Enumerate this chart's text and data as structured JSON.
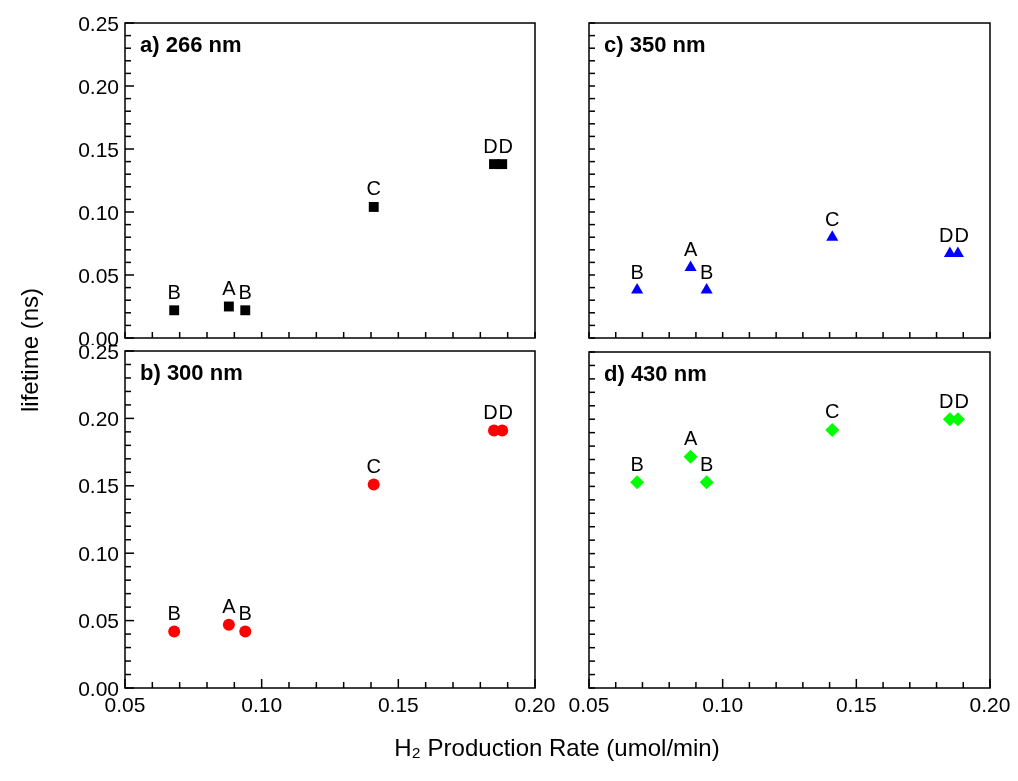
{
  "chart_data": [
    {
      "type": "scatter",
      "title": "a) 266 nm",
      "ylabel": "lifetime (ns)",
      "marker": "square",
      "tick_labels": "y",
      "x": [
        0.068,
        0.088,
        0.094,
        0.141,
        0.185,
        0.188
      ],
      "series": [
        {
          "color": "#000000",
          "values": [
            0.022,
            0.025,
            0.022,
            0.104,
            0.138,
            0.138
          ]
        }
      ],
      "xlim": [
        0.05,
        0.2
      ],
      "ylim": [
        0,
        0.25
      ],
      "xticks": [
        {
          "value": 0.05,
          "label": null
        },
        {
          "value": 0.06,
          "label": null
        },
        {
          "value": 0.07,
          "label": null
        },
        {
          "value": 0.08,
          "label": null
        },
        {
          "value": 0.09,
          "label": null
        },
        {
          "value": 0.1,
          "label": null
        },
        {
          "value": 0.11,
          "label": null
        },
        {
          "value": 0.12,
          "label": null
        },
        {
          "value": 0.13,
          "label": null
        },
        {
          "value": 0.14,
          "label": null
        },
        {
          "value": 0.15,
          "label": null
        },
        {
          "value": 0.16,
          "label": null
        },
        {
          "value": 0.17,
          "label": null
        },
        {
          "value": 0.18,
          "label": null
        },
        {
          "value": 0.19,
          "label": null
        },
        {
          "value": 0.2,
          "label": null
        }
      ],
      "yticks": [
        {
          "value": 0,
          "label": "0.00"
        },
        {
          "value": 0.01,
          "label": null
        },
        {
          "value": 0.02,
          "label": null
        },
        {
          "value": 0.03,
          "label": null
        },
        {
          "value": 0.04,
          "label": null
        },
        {
          "value": 0.05,
          "label": "0.05"
        },
        {
          "value": 0.06,
          "label": null
        },
        {
          "value": 0.07,
          "label": null
        },
        {
          "value": 0.08,
          "label": null
        },
        {
          "value": 0.09,
          "label": null
        },
        {
          "value": 0.1,
          "label": "0.10"
        },
        {
          "value": 0.11,
          "label": null
        },
        {
          "value": 0.12,
          "label": null
        },
        {
          "value": 0.13,
          "label": null
        },
        {
          "value": 0.14,
          "label": null
        },
        {
          "value": 0.15,
          "label": "0.15"
        },
        {
          "value": 0.16,
          "label": null
        },
        {
          "value": 0.17,
          "label": null
        },
        {
          "value": 0.18,
          "label": null
        },
        {
          "value": 0.19,
          "label": null
        },
        {
          "value": 0.2,
          "label": "0.20"
        },
        {
          "value": 0.21,
          "label": null
        },
        {
          "value": 0.22,
          "label": null
        },
        {
          "value": 0.23,
          "label": null
        },
        {
          "value": 0.24,
          "label": null
        },
        {
          "value": 0.25,
          "label": "0.25"
        }
      ],
      "annotations": [
        {
          "text": "B",
          "x": 0.068,
          "y": 0.022
        },
        {
          "text": "A",
          "x": 0.088,
          "y": 0.025
        },
        {
          "text": "B",
          "x": 0.094,
          "y": 0.022
        },
        {
          "text": "C",
          "x": 0.141,
          "y": 0.104
        },
        {
          "text": "D",
          "x": 0.185,
          "y": 0.138
        },
        {
          "text": "D",
          "x": 0.188,
          "y": 0.138
        }
      ]
    },
    {
      "type": "scatter",
      "title": "b) 300 nm",
      "xlabel": "H₂ Production Rate (umol/min)",
      "marker": "circle",
      "x": [
        0.068,
        0.088,
        0.094,
        0.141,
        0.185,
        0.188
      ],
      "series": [
        {
          "color": "#ff0000",
          "values": [
            0.042,
            0.047,
            0.042,
            0.151,
            0.191,
            0.191
          ]
        }
      ],
      "xlim": [
        0.05,
        0.2
      ],
      "ylim": [
        0,
        0.25
      ],
      "xticks": [
        {
          "value": 0.05,
          "label": "0.05"
        },
        {
          "value": 0.06,
          "label": null
        },
        {
          "value": 0.07,
          "label": null
        },
        {
          "value": 0.08,
          "label": null
        },
        {
          "value": 0.09,
          "label": null
        },
        {
          "value": 0.1,
          "label": "0.10"
        },
        {
          "value": 0.11,
          "label": null
        },
        {
          "value": 0.12,
          "label": null
        },
        {
          "value": 0.13,
          "label": null
        },
        {
          "value": 0.14,
          "label": null
        },
        {
          "value": 0.15,
          "label": "0.15"
        },
        {
          "value": 0.16,
          "label": null
        },
        {
          "value": 0.17,
          "label": null
        },
        {
          "value": 0.18,
          "label": null
        },
        {
          "value": 0.19,
          "label": null
        },
        {
          "value": 0.2,
          "label": "0.20"
        }
      ],
      "yticks": [
        {
          "value": 0,
          "label": "0.00"
        },
        {
          "value": 0.01,
          "label": null
        },
        {
          "value": 0.02,
          "label": null
        },
        {
          "value": 0.03,
          "label": null
        },
        {
          "value": 0.04,
          "label": null
        },
        {
          "value": 0.05,
          "label": "0.05"
        },
        {
          "value": 0.06,
          "label": null
        },
        {
          "value": 0.07,
          "label": null
        },
        {
          "value": 0.08,
          "label": null
        },
        {
          "value": 0.09,
          "label": null
        },
        {
          "value": 0.1,
          "label": "0.10"
        },
        {
          "value": 0.11,
          "label": null
        },
        {
          "value": 0.12,
          "label": null
        },
        {
          "value": 0.13,
          "label": null
        },
        {
          "value": 0.14,
          "label": null
        },
        {
          "value": 0.15,
          "label": "0.15"
        },
        {
          "value": 0.16,
          "label": null
        },
        {
          "value": 0.17,
          "label": null
        },
        {
          "value": 0.18,
          "label": null
        },
        {
          "value": 0.19,
          "label": null
        },
        {
          "value": 0.2,
          "label": "0.20"
        },
        {
          "value": 0.21,
          "label": null
        },
        {
          "value": 0.22,
          "label": null
        },
        {
          "value": 0.23,
          "label": null
        },
        {
          "value": 0.24,
          "label": null
        },
        {
          "value": 0.25,
          "label": "0.25"
        }
      ],
      "annotations": [
        {
          "text": "B",
          "x": 0.068,
          "y": 0.042
        },
        {
          "text": "A",
          "x": 0.088,
          "y": 0.047
        },
        {
          "text": "B",
          "x": 0.094,
          "y": 0.042
        },
        {
          "text": "C",
          "x": 0.141,
          "y": 0.151
        },
        {
          "text": "D",
          "x": 0.185,
          "y": 0.191
        },
        {
          "text": "D",
          "x": 0.188,
          "y": 0.191
        }
      ]
    },
    {
      "type": "scatter",
      "title": "c) 350 nm",
      "marker": "triangle",
      "tick_labels": false,
      "x": [
        0.068,
        0.088,
        0.094,
        0.141,
        0.185,
        0.188
      ],
      "series": [
        {
          "color": "#0000ff",
          "values": [
            0.038,
            0.056,
            0.038,
            0.08,
            0.067,
            0.067
          ]
        }
      ],
      "xlim": [
        0.05,
        0.2
      ],
      "ylim": [
        0,
        0.25
      ],
      "xticks": [
        {
          "value": 0.05,
          "label": null
        },
        {
          "value": 0.06,
          "label": null
        },
        {
          "value": 0.07,
          "label": null
        },
        {
          "value": 0.08,
          "label": null
        },
        {
          "value": 0.09,
          "label": null
        },
        {
          "value": 0.1,
          "label": null
        },
        {
          "value": 0.11,
          "label": null
        },
        {
          "value": 0.12,
          "label": null
        },
        {
          "value": 0.13,
          "label": null
        },
        {
          "value": 0.14,
          "label": null
        },
        {
          "value": 0.15,
          "label": null
        },
        {
          "value": 0.16,
          "label": null
        },
        {
          "value": 0.17,
          "label": null
        },
        {
          "value": 0.18,
          "label": null
        },
        {
          "value": 0.19,
          "label": null
        },
        {
          "value": 0.2,
          "label": null
        }
      ],
      "yticks": [
        {
          "value": 0,
          "label": null
        },
        {
          "value": 0.01,
          "label": null
        },
        {
          "value": 0.02,
          "label": null
        },
        {
          "value": 0.03,
          "label": null
        },
        {
          "value": 0.04,
          "label": null
        },
        {
          "value": 0.05,
          "label": null
        },
        {
          "value": 0.06,
          "label": null
        },
        {
          "value": 0.07,
          "label": null
        },
        {
          "value": 0.08,
          "label": null
        },
        {
          "value": 0.09,
          "label": null
        },
        {
          "value": 0.1,
          "label": null
        },
        {
          "value": 0.11,
          "label": null
        },
        {
          "value": 0.12,
          "label": null
        },
        {
          "value": 0.13,
          "label": null
        },
        {
          "value": 0.14,
          "label": null
        },
        {
          "value": 0.15,
          "label": null
        },
        {
          "value": 0.16,
          "label": null
        },
        {
          "value": 0.17,
          "label": null
        },
        {
          "value": 0.18,
          "label": null
        },
        {
          "value": 0.19,
          "label": null
        },
        {
          "value": 0.2,
          "label": null
        },
        {
          "value": 0.21,
          "label": null
        },
        {
          "value": 0.22,
          "label": null
        },
        {
          "value": 0.23,
          "label": null
        },
        {
          "value": 0.24,
          "label": null
        },
        {
          "value": 0.25,
          "label": null
        }
      ],
      "annotations": [
        {
          "text": "B",
          "x": 0.068,
          "y": 0.038
        },
        {
          "text": "A",
          "x": 0.088,
          "y": 0.056
        },
        {
          "text": "B",
          "x": 0.094,
          "y": 0.038
        },
        {
          "text": "C",
          "x": 0.141,
          "y": 0.08
        },
        {
          "text": "D",
          "x": 0.185,
          "y": 0.067
        },
        {
          "text": "D",
          "x": 0.188,
          "y": 0.067
        }
      ]
    },
    {
      "type": "scatter",
      "title": "d) 430 nm",
      "marker": "diamond",
      "tick_labels": "x",
      "x": [
        0.068,
        0.088,
        0.094,
        0.141,
        0.185,
        0.188
      ],
      "series": [
        {
          "color": "#00ff00",
          "values": [
            0.153,
            0.172,
            0.153,
            0.192,
            0.2,
            0.2
          ]
        }
      ],
      "xlim": [
        0.05,
        0.2
      ],
      "ylim": [
        0,
        0.25
      ],
      "xticks": [
        {
          "value": 0.05,
          "label": "0.05"
        },
        {
          "value": 0.06,
          "label": null
        },
        {
          "value": 0.07,
          "label": null
        },
        {
          "value": 0.08,
          "label": null
        },
        {
          "value": 0.09,
          "label": null
        },
        {
          "value": 0.1,
          "label": "0.10"
        },
        {
          "value": 0.11,
          "label": null
        },
        {
          "value": 0.12,
          "label": null
        },
        {
          "value": 0.13,
          "label": null
        },
        {
          "value": 0.14,
          "label": null
        },
        {
          "value": 0.15,
          "label": "0.15"
        },
        {
          "value": 0.16,
          "label": null
        },
        {
          "value": 0.17,
          "label": null
        },
        {
          "value": 0.18,
          "label": null
        },
        {
          "value": 0.19,
          "label": null
        },
        {
          "value": 0.2,
          "label": "0.20"
        }
      ],
      "yticks": [
        {
          "value": 0,
          "label": null
        },
        {
          "value": 0.01,
          "label": null
        },
        {
          "value": 0.02,
          "label": null
        },
        {
          "value": 0.03,
          "label": null
        },
        {
          "value": 0.04,
          "label": null
        },
        {
          "value": 0.05,
          "label": null
        },
        {
          "value": 0.06,
          "label": null
        },
        {
          "value": 0.07,
          "label": null
        },
        {
          "value": 0.08,
          "label": null
        },
        {
          "value": 0.09,
          "label": null
        },
        {
          "value": 0.1,
          "label": null
        },
        {
          "value": 0.11,
          "label": null
        },
        {
          "value": 0.12,
          "label": null
        },
        {
          "value": 0.13,
          "label": null
        },
        {
          "value": 0.14,
          "label": null
        },
        {
          "value": 0.15,
          "label": null
        },
        {
          "value": 0.16,
          "label": null
        },
        {
          "value": 0.17,
          "label": null
        },
        {
          "value": 0.18,
          "label": null
        },
        {
          "value": 0.19,
          "label": null
        },
        {
          "value": 0.2,
          "label": null
        },
        {
          "value": 0.21,
          "label": null
        },
        {
          "value": 0.22,
          "label": null
        },
        {
          "value": 0.23,
          "label": null
        },
        {
          "value": 0.24,
          "label": null
        },
        {
          "value": 0.25,
          "label": null
        }
      ],
      "annotations": [
        {
          "text": "B",
          "x": 0.068,
          "y": 0.153
        },
        {
          "text": "A",
          "x": 0.088,
          "y": 0.172
        },
        {
          "text": "B",
          "x": 0.094,
          "y": 0.153
        },
        {
          "text": "C",
          "x": 0.141,
          "y": 0.192
        },
        {
          "text": "D",
          "x": 0.185,
          "y": 0.2
        },
        {
          "text": "D",
          "x": 0.188,
          "y": 0.2
        }
      ]
    }
  ]
}
